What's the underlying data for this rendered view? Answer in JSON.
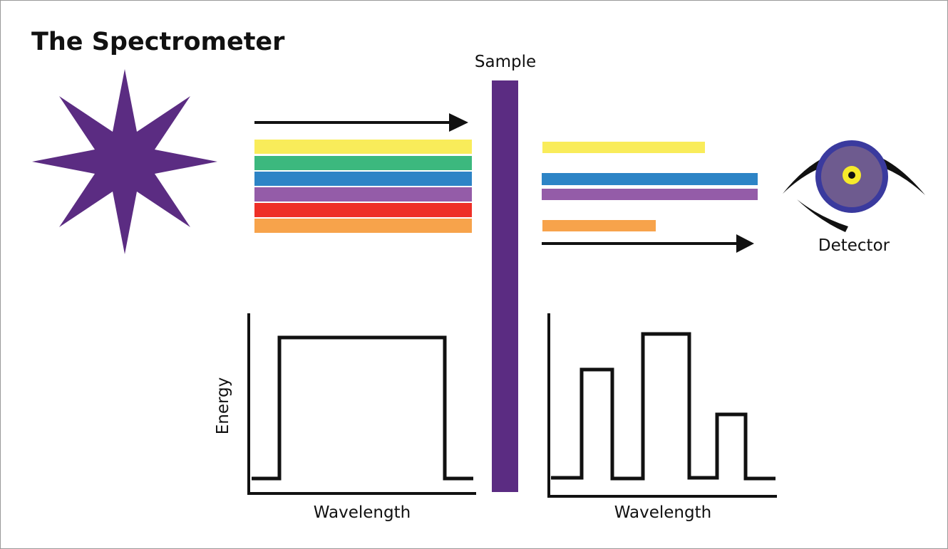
{
  "title": "The Spectrometer",
  "sample_label": "Sample",
  "detector_label": "Detector",
  "input_graph": {
    "y_label": "Energy",
    "x_label": "Wavelength"
  },
  "output_graph": {
    "x_label": "Wavelength"
  }
}
